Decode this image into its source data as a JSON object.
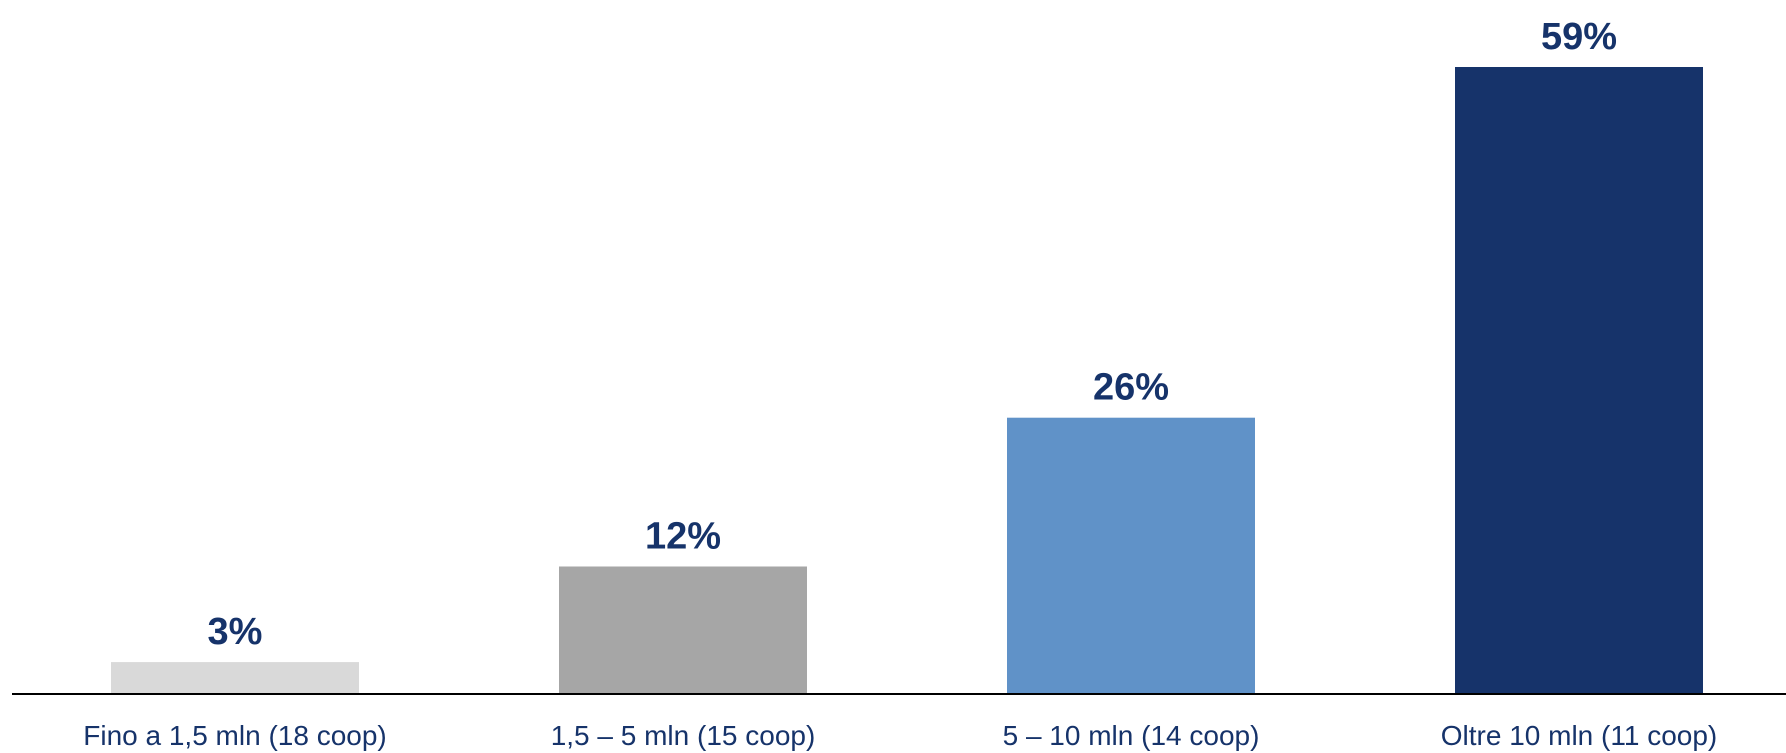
{
  "chart_data": {
    "type": "bar",
    "title": "",
    "xlabel": "",
    "ylabel": "",
    "categories": [
      "Fino a 1,5 mln (18 coop)",
      "1,5 – 5 mln (15 coop)",
      "5 – 10 mln (14 coop)",
      "Oltre 10 mln (11 coop)"
    ],
    "values": [
      3,
      12,
      26,
      59
    ],
    "value_labels": [
      "3%",
      "12%",
      "26%",
      "59%"
    ],
    "unit": "%",
    "ylim": [
      0,
      59
    ],
    "grid": false,
    "legend": "none",
    "bar_colors": [
      "#d9d9d9",
      "#a6a6a6",
      "#6092c8",
      "#16336a"
    ],
    "label_color": "#16336a",
    "axis_color": "#000000"
  }
}
